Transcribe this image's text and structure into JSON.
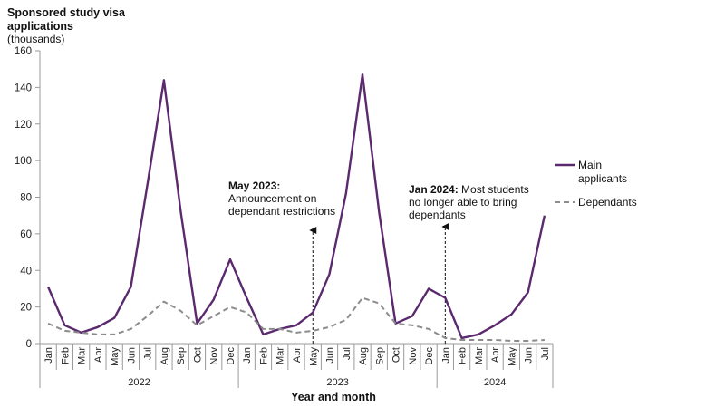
{
  "chart_data": {
    "type": "line",
    "title": "Sponsored study visa",
    "title_line2": "applications",
    "subtitle": "(thousands)",
    "xlabel": "Year and month",
    "ylim": [
      0,
      160
    ],
    "yticks": [
      "0",
      "20",
      "40",
      "60",
      "80",
      "100",
      "120",
      "140",
      "160"
    ],
    "grid": false,
    "legend_position": "right",
    "categories": [
      "Jan",
      "Feb",
      "Mar",
      "Apr",
      "May",
      "Jun",
      "Jul",
      "Aug",
      "Sep",
      "Oct",
      "Nov",
      "Dec",
      "Jan",
      "Feb",
      "Mar",
      "Apr",
      "May",
      "Jun",
      "Jul",
      "Aug",
      "Sep",
      "Oct",
      "Nov",
      "Dec",
      "Jan",
      "Feb",
      "Mar",
      "Apr",
      "May",
      "Jun",
      "Jul"
    ],
    "years": [
      {
        "label": "2022",
        "start": 0,
        "end": 11
      },
      {
        "label": "2023",
        "start": 12,
        "end": 23
      },
      {
        "label": "2024",
        "start": 24,
        "end": 30
      }
    ],
    "series": [
      {
        "name": "Main applicants",
        "legend_lines": [
          "Main",
          "applicants"
        ],
        "color": "#5b2a6e",
        "style": "solid",
        "values": [
          31,
          10,
          6,
          9,
          14,
          31,
          87,
          144,
          73,
          11,
          24,
          46,
          25,
          5,
          8,
          10,
          17,
          38,
          82,
          147,
          72,
          11,
          15,
          30,
          25,
          3,
          5,
          10,
          16,
          28,
          70
        ]
      },
      {
        "name": "Dependants",
        "legend_lines": [
          "Dependants"
        ],
        "color": "#8c8c8c",
        "style": "dashed",
        "values": [
          11,
          7,
          6,
          5,
          5,
          8,
          15,
          23,
          18,
          10,
          15,
          20,
          17,
          8,
          8,
          6,
          7,
          9,
          13,
          25,
          22,
          11,
          10,
          8,
          3,
          2,
          2,
          2,
          1.5,
          1.5,
          2
        ]
      }
    ],
    "annotations": [
      {
        "index": 16,
        "bold": "May 2023:",
        "lines": [
          "Announcement on",
          "dependant restrictions"
        ]
      },
      {
        "index": 24,
        "bold": "Jan 2024:",
        "first_rest": " Most students",
        "lines": [
          "no longer able to bring",
          "dependants"
        ]
      }
    ]
  }
}
